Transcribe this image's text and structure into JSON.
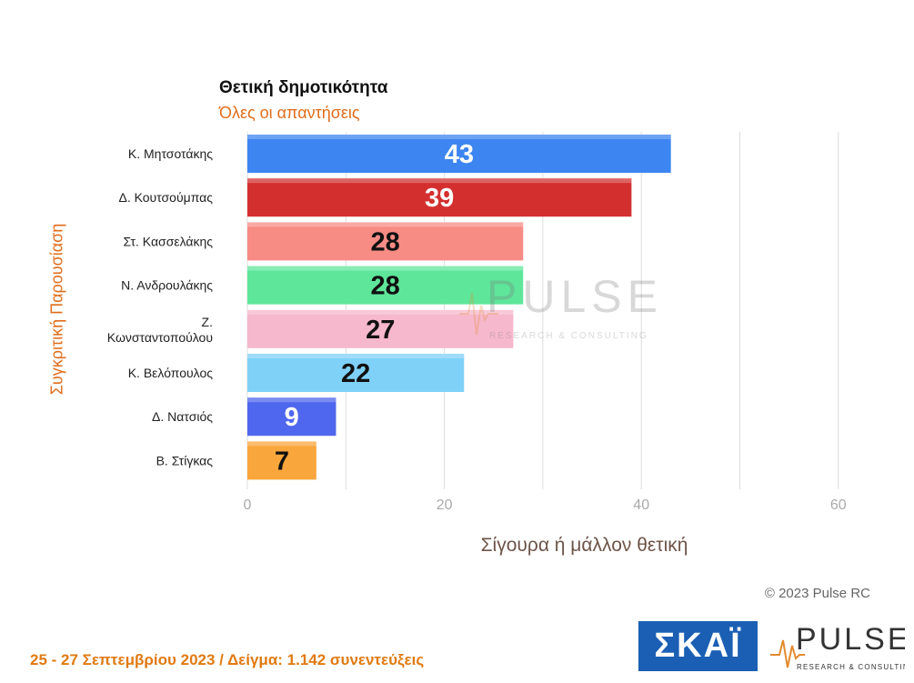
{
  "chart_data": {
    "type": "bar",
    "orientation": "horizontal",
    "title": "Θετική δημοτικότητα",
    "subtitle": "Όλες οι απαντήσεις",
    "ylabel": "Συγκριτική  Παρουσίαση",
    "xlabel": "Σίγουρα ή μάλλον θετική",
    "categories": [
      "Κ. Μητσοτάκης",
      "Δ. Κουτσούμπας",
      "Στ. Κασσελάκης",
      "Ν. Ανδρουλάκης",
      "Ζ. Κωνσταντοπούλου",
      "Κ. Βελόπουλος",
      "Δ. Νατσιός",
      "Β. Στίγκας"
    ],
    "values": [
      43,
      39,
      28,
      28,
      27,
      22,
      9,
      7
    ],
    "colors": [
      "#3d85f0",
      "#d32f2f",
      "#f78c84",
      "#5ee69a",
      "#f6b8cc",
      "#7fd1f7",
      "#4f67ee",
      "#f9a63c"
    ],
    "label_colors": [
      "#ffffff",
      "#ffffff",
      "#111111",
      "#111111",
      "#111111",
      "#111111",
      "#ffffff",
      "#111111"
    ],
    "xlim": [
      0,
      65
    ],
    "xticks": [
      0,
      20,
      40,
      60
    ],
    "grid": true
  },
  "watermark": {
    "brand": "PULSE",
    "tagline": "RESEARCH & CONSULTING"
  },
  "copyright": "© 2023 Pulse RC",
  "footer_note": "25 - 27  Σεπτεμβρίου  2023  /  Δείγμα:  1.142 συνεντεύξεις",
  "logos": {
    "skai": "ΣΚΑΪ",
    "pulse_brand": "PULSE",
    "pulse_tagline": "RESEARCH & CONSULTING"
  }
}
